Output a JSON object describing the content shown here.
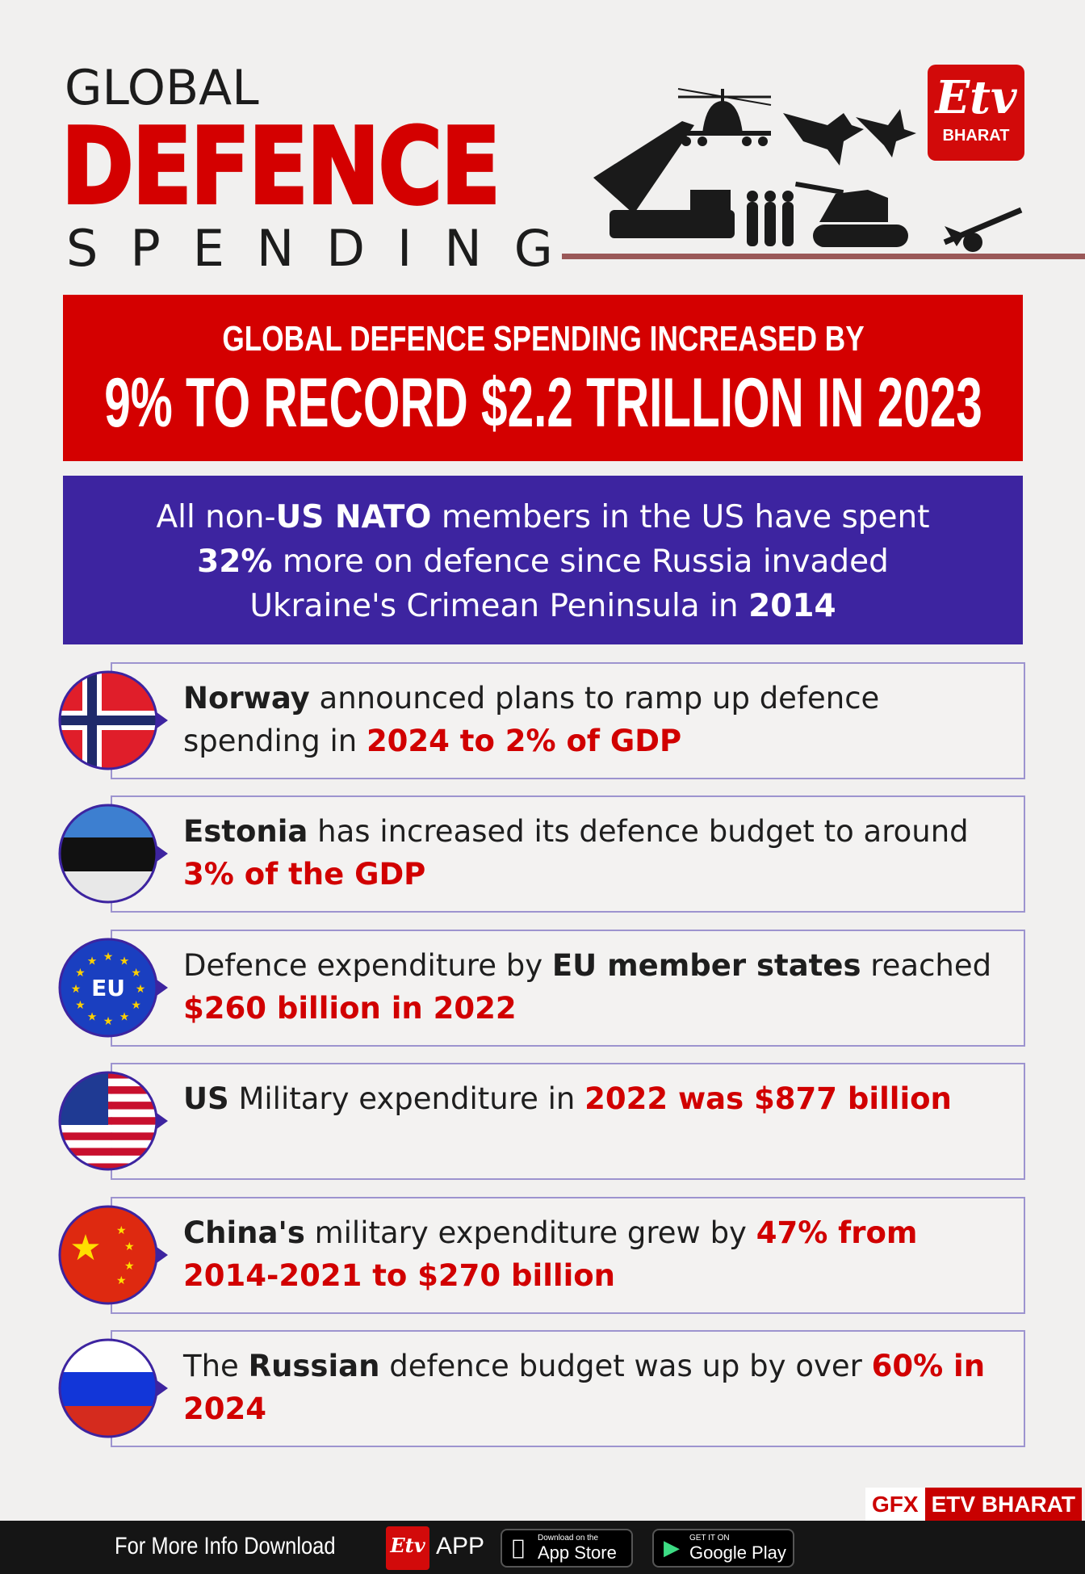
{
  "header": {
    "line1": "GLOBAL",
    "line2": "DEFENCE",
    "line3": "SPENDING"
  },
  "logo": {
    "mark": "Etv",
    "text": "BHARAT"
  },
  "banner": {
    "line1": "GLOBAL DEFENCE SPENDING INCREASED BY",
    "line2": "9% TO RECORD $2.2 TRILLION IN 2023"
  },
  "nato": {
    "a": "All non-",
    "b": "US NATO",
    "c": " members in the US have spent",
    "d": "32%",
    "e": " more on defence since Russia invaded",
    "f": "Ukraine's Crimean Peninsula in ",
    "g": "2014"
  },
  "items": [
    {
      "flag": "norway-flag",
      "p1": "Norway",
      "p2": " announced plans to ramp up defence spending in ",
      "p3": "2024 to 2% of GDP"
    },
    {
      "flag": "estonia-flag",
      "p1": "Estonia",
      "p2": " has increased its defence budget to around ",
      "p3": "3% of the GDP"
    },
    {
      "flag": "eu-flag",
      "pre": "Defence expenditure by ",
      "p1": "EU member states",
      "p2": " reached ",
      "p3": "$260 billion in 2022",
      "flag_text": "EU"
    },
    {
      "flag": "us-flag",
      "p1": "US",
      "p2": " Military expenditure in ",
      "p3": "2022 was $877 billion"
    },
    {
      "flag": "china-flag",
      "p1": "China's",
      "p2": " military expenditure grew by ",
      "p3": "47% from 2014-2021 to $270 billion"
    },
    {
      "flag": "russia-flag",
      "pre": "The ",
      "p1": "Russian",
      "p2": " defence budget was up by over ",
      "p3": "60% in 2024"
    }
  ],
  "credit": {
    "gfx": "GFX",
    "brand": "ETV BHARAT"
  },
  "footer": {
    "message": "For More Info Download",
    "logo": "Etv",
    "app": "APP",
    "appstore_small": "Download on the",
    "appstore": "App Store",
    "play_small": "GET IT ON",
    "play": "Google Play"
  },
  "colors": {
    "red": "#d40000",
    "purple": "#3d24a0",
    "border": "#9d94cf"
  }
}
